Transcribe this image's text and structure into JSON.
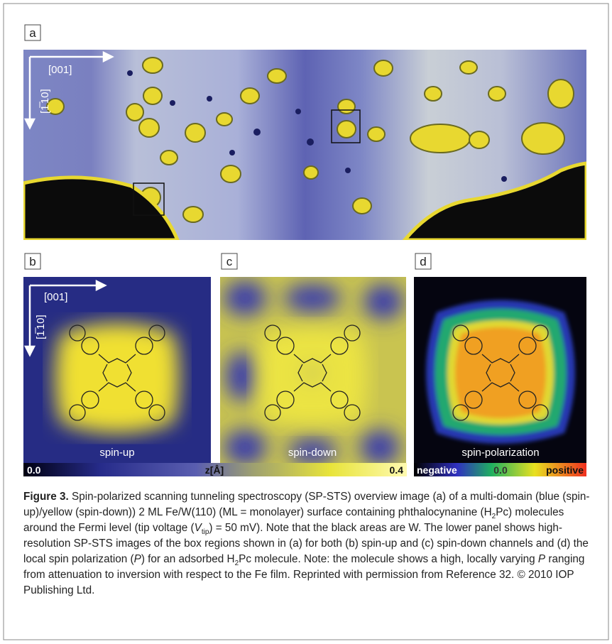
{
  "panels": [
    {
      "label": "a",
      "axes": [
        "[001]",
        "[1̅ 10]"
      ]
    },
    {
      "label": "b",
      "axes": [
        "[001]",
        "[1̅ 10]"
      ],
      "caption": "spin-up"
    },
    {
      "label": "c",
      "caption": "spin-down"
    },
    {
      "label": "d",
      "caption": "spin-polarization"
    }
  ],
  "colorbars": [
    {
      "labels": [
        "0.0",
        "z[Å]",
        "0.4"
      ]
    },
    {
      "labels": [
        "negative",
        "0.0",
        "positive"
      ]
    }
  ],
  "caption": [
    "Figure 3.",
    " Spin-polarized scanning tunneling spectroscopy (SP-STS) overview image (a) of a multi-domain (blue (spin-up)/yellow (spin-down)) 2 ML Fe/W(110) (ML = monolayer) surface containing phthalocynanine (H",
    "2",
    "Pc) molecules around the Fermi level (tip voltage (",
    "V",
    "tip",
    ") = 50 mV). Note that the black areas are W. The lower panel shows high-resolution SP-STS images of the box regions shown in (a) for both (b) spin-up and (c) spin-down channels and (d) the local spin polarization (",
    "P",
    ") for an adsorbed H",
    "2",
    "Pc molecule. Note: the molecule shows a high, locally varying ",
    "P",
    " ranging from attenuation to inversion with respect to the Fe film. Reprinted with permission from Reference 32. © 2010 IOP Publishing Ltd."
  ]
}
